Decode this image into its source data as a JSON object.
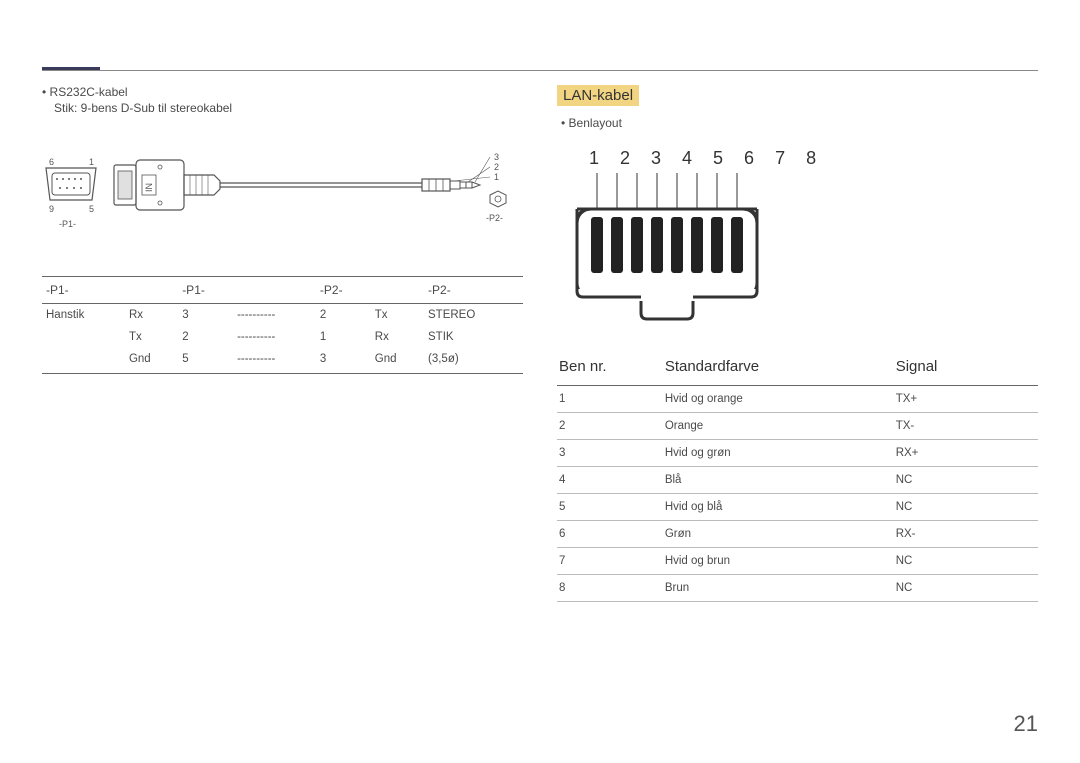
{
  "page_number": "21",
  "left": {
    "bullet": "RS232C-kabel",
    "subline": "Stik: 9-bens D-Sub til stereokabel",
    "dsub": {
      "tl": "6",
      "tr": "1",
      "bl": "9",
      "br": "5",
      "label": "-P1-"
    },
    "jack": {
      "n3": "3",
      "n2": "2",
      "n1": "1",
      "label": "-P2-"
    },
    "in_label": "IN",
    "table": {
      "headers": [
        "-P1-",
        "",
        "-P1-",
        "",
        "-P2-",
        "",
        "-P2-"
      ],
      "rows": [
        [
          "Hanstik",
          "Rx",
          "3",
          "----------",
          "2",
          "Tx",
          "STEREO"
        ],
        [
          "",
          "Tx",
          "2",
          "----------",
          "1",
          "Rx",
          "STIK"
        ],
        [
          "",
          "Gnd",
          "5",
          "----------",
          "3",
          "Gnd",
          "(3,5ø)"
        ]
      ]
    }
  },
  "right": {
    "heading": "LAN-kabel",
    "bullet": "Benlayout",
    "pins": [
      "1",
      "2",
      "3",
      "4",
      "5",
      "6",
      "7",
      "8"
    ],
    "table": {
      "headers": [
        "Ben nr.",
        "Standardfarve",
        "Signal"
      ],
      "rows": [
        [
          "1",
          "Hvid og orange",
          "TX+"
        ],
        [
          "2",
          "Orange",
          "TX-"
        ],
        [
          "3",
          "Hvid og grøn",
          "RX+"
        ],
        [
          "4",
          "Blå",
          "NC"
        ],
        [
          "5",
          "Hvid og blå",
          "NC"
        ],
        [
          "6",
          "Grøn",
          "RX-"
        ],
        [
          "7",
          "Hvid og brun",
          "NC"
        ],
        [
          "8",
          "Brun",
          "NC"
        ]
      ]
    }
  },
  "colors": {
    "highlight": "#f2d582",
    "rule": "#888888",
    "accent": "#3a3a5a",
    "text": "#4a4a4a"
  }
}
